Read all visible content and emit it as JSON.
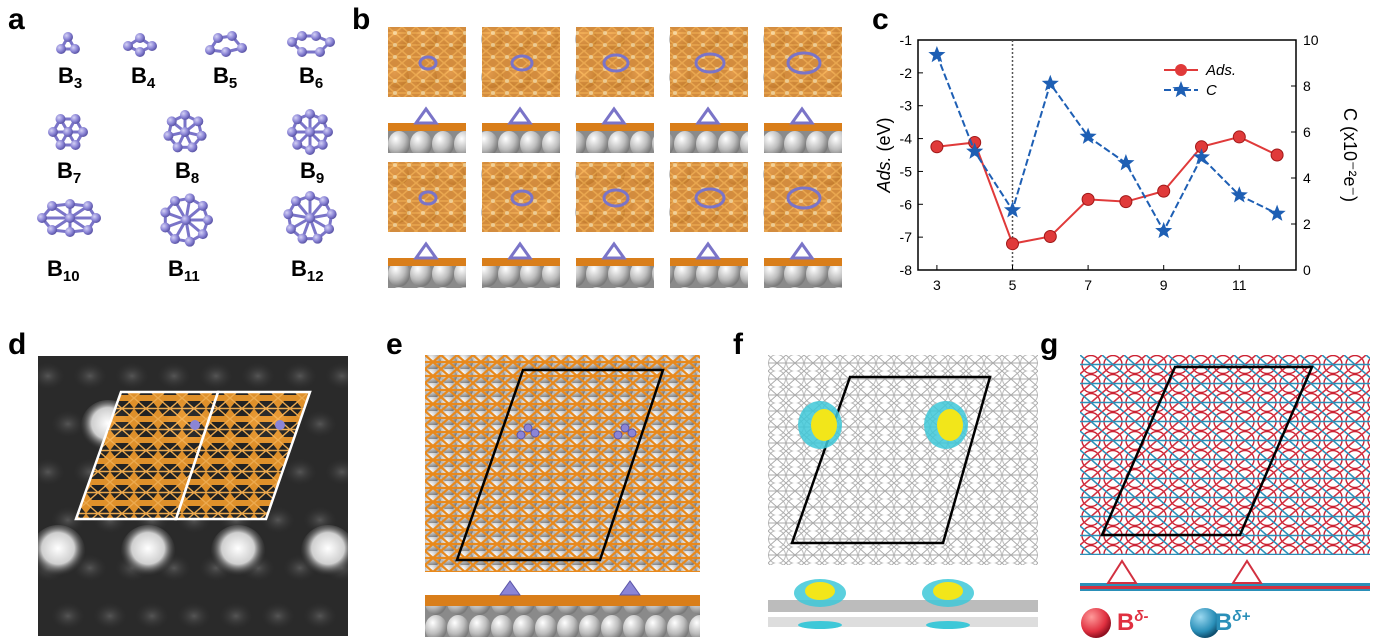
{
  "panels": {
    "a": "a",
    "b": "b",
    "c": "c",
    "d": "d",
    "e": "e",
    "f": "f",
    "g": "g"
  },
  "clusters": [
    {
      "base": "B",
      "sub": "3"
    },
    {
      "base": "B",
      "sub": "4"
    },
    {
      "base": "B",
      "sub": "5"
    },
    {
      "base": "B",
      "sub": "6"
    },
    {
      "base": "B",
      "sub": "7"
    },
    {
      "base": "B",
      "sub": "8"
    },
    {
      "base": "B",
      "sub": "9"
    },
    {
      "base": "B",
      "sub": "10"
    },
    {
      "base": "B",
      "sub": "11"
    },
    {
      "base": "B",
      "sub": "12"
    }
  ],
  "colors": {
    "boron": "#8b85d6",
    "silver": "#c8c8c8",
    "copper": "#e08a1e",
    "ads": "#e03a3a",
    "charge": "#1e5fb4",
    "bneg": "#e03040",
    "bpos": "#2a8fb8"
  },
  "legend_g": {
    "neg_base": "B",
    "neg_sup": "δ-",
    "pos_base": "B",
    "pos_sup": "δ+"
  },
  "chart_data": {
    "type": "line",
    "x": [
      3,
      4,
      5,
      6,
      7,
      8,
      9,
      10,
      11,
      12
    ],
    "series": [
      {
        "name": "Ads.",
        "axis": "left",
        "values": [
          -4.25,
          -4.12,
          -7.2,
          -6.98,
          -5.85,
          -5.92,
          -5.6,
          -4.25,
          -3.95,
          -4.5
        ]
      },
      {
        "name": "C",
        "axis": "right",
        "values": [
          9.35,
          5.15,
          2.6,
          8.1,
          5.8,
          4.65,
          1.7,
          4.9,
          3.25,
          2.45
        ]
      }
    ],
    "ylabel_left": {
      "italic": "Ads.",
      "rest": " (eV)"
    },
    "ylabel_right": "C (x10⁻²e⁻)",
    "xticks": [
      "3",
      "5",
      "7",
      "9",
      "11"
    ],
    "yticks_left": [
      "-1",
      "-2",
      "-3",
      "-4",
      "-5",
      "-6",
      "-7",
      "-8"
    ],
    "yticks_right": [
      "0",
      "2",
      "4",
      "6",
      "8",
      "10"
    ],
    "xlim": [
      2.5,
      12.5
    ],
    "ylim_left": [
      -8,
      -1
    ],
    "ylim_right": [
      0,
      10
    ],
    "vline_x": 5,
    "legend_position": "top-right"
  }
}
